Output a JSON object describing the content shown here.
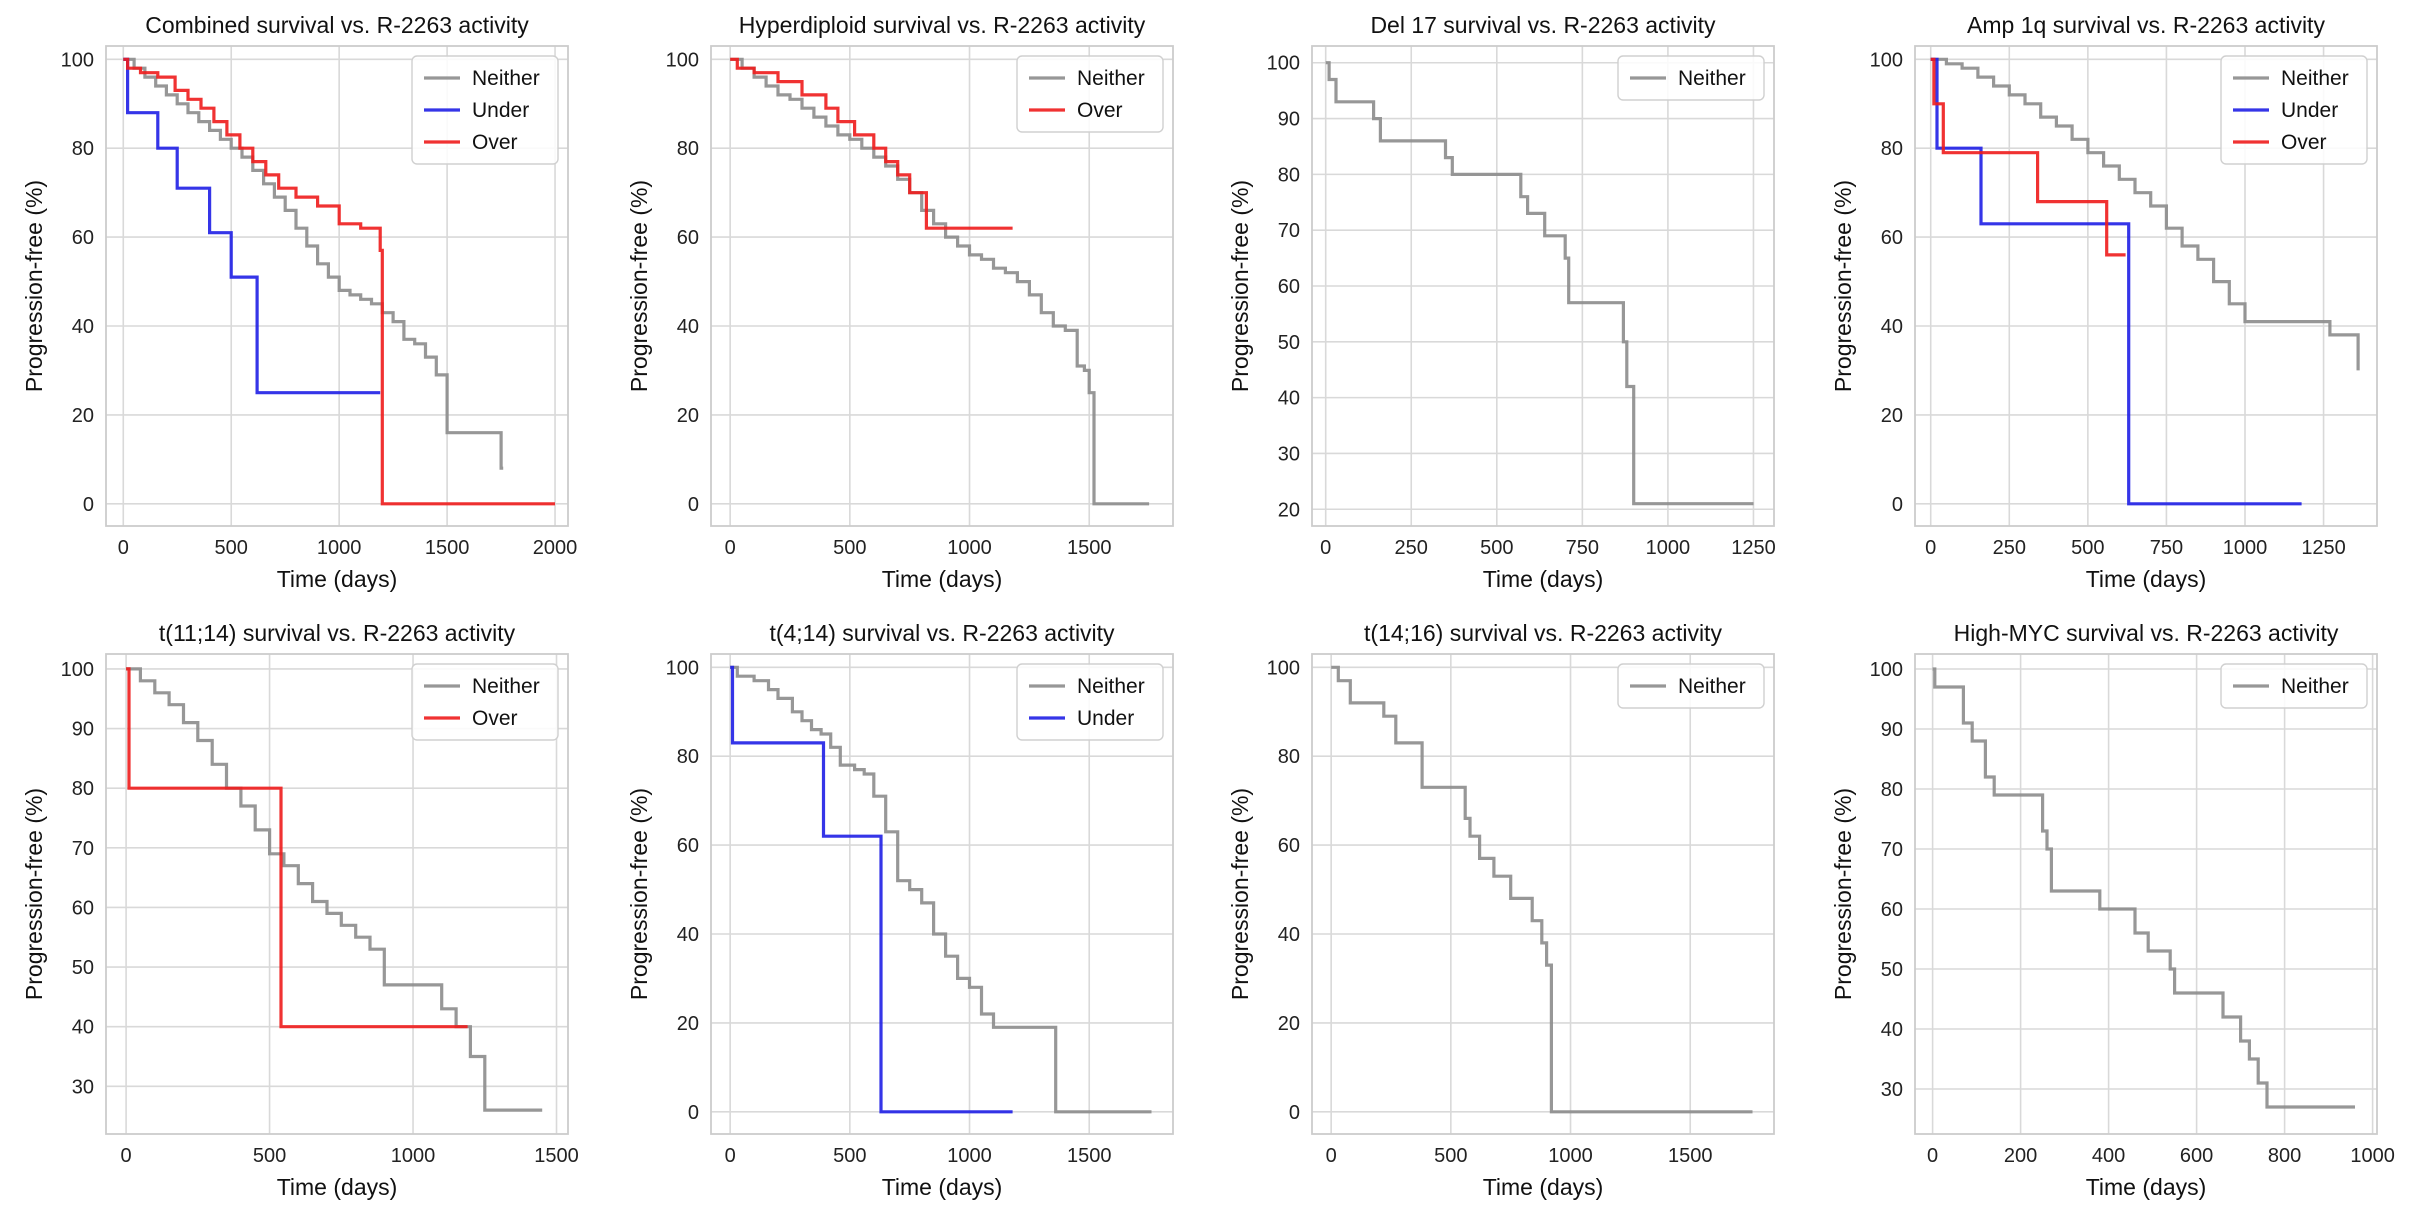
{
  "figure": {
    "colors": {
      "Neither": "#8c8c8c",
      "Under": "#1f1fe6",
      "Over": "#ee1c1c",
      "grid": "#d9d9d9",
      "frame": "#cccccc"
    }
  },
  "chart_data": [
    {
      "type": "line",
      "step": true,
      "title": "Combined survival vs. R-2263 activity",
      "xlabel": "Time (days)",
      "ylabel": "Progression-free (%)",
      "xlim": [
        -80,
        2060
      ],
      "ylim": [
        -5,
        103
      ],
      "xticks": [
        0,
        500,
        1000,
        1500,
        2000
      ],
      "yticks": [
        0,
        20,
        40,
        60,
        80,
        100
      ],
      "legend": [
        "Neither",
        "Under",
        "Over"
      ],
      "series": [
        {
          "name": "Neither",
          "x": [
            0,
            50,
            100,
            150,
            200,
            250,
            300,
            350,
            400,
            450,
            500,
            550,
            600,
            650,
            700,
            750,
            800,
            850,
            900,
            950,
            1000,
            1050,
            1100,
            1150,
            1200,
            1250,
            1300,
            1350,
            1400,
            1450,
            1500,
            1600,
            1700,
            1750,
            1760
          ],
          "y": [
            100,
            98,
            96,
            94,
            92,
            90,
            88,
            86,
            84,
            82,
            80,
            78,
            75,
            72,
            69,
            66,
            62,
            58,
            54,
            51,
            48,
            47,
            46,
            45,
            43,
            41,
            37,
            36,
            33,
            29,
            16,
            16,
            16,
            8,
            8
          ]
        },
        {
          "name": "Under",
          "x": [
            0,
            20,
            160,
            250,
            400,
            500,
            620,
            1190
          ],
          "y": [
            100,
            88,
            80,
            71,
            61,
            51,
            25,
            25
          ]
        },
        {
          "name": "Over",
          "x": [
            0,
            20,
            80,
            160,
            240,
            300,
            360,
            420,
            480,
            540,
            600,
            660,
            720,
            800,
            900,
            1000,
            1100,
            1190,
            1200,
            2000
          ],
          "y": [
            100,
            98,
            97,
            96,
            93,
            91,
            89,
            86,
            83,
            80,
            77,
            74,
            71,
            69,
            67,
            63,
            62,
            57,
            0,
            0
          ]
        }
      ]
    },
    {
      "type": "line",
      "step": true,
      "title": "Hyperdiploid survival vs. R-2263 activity",
      "xlabel": "Time (days)",
      "ylabel": "Progression-free (%)",
      "xlim": [
        -80,
        1850
      ],
      "ylim": [
        -5,
        103
      ],
      "xticks": [
        0,
        500,
        1000,
        1500
      ],
      "yticks": [
        0,
        20,
        40,
        60,
        80,
        100
      ],
      "legend": [
        "Neither",
        "Over"
      ],
      "series": [
        {
          "name": "Neither",
          "x": [
            0,
            50,
            100,
            150,
            200,
            250,
            300,
            350,
            400,
            450,
            500,
            550,
            600,
            650,
            700,
            750,
            800,
            850,
            900,
            950,
            1000,
            1050,
            1100,
            1150,
            1200,
            1250,
            1300,
            1350,
            1400,
            1450,
            1480,
            1500,
            1520,
            1750
          ],
          "y": [
            100,
            98,
            96,
            94,
            92,
            91,
            89,
            87,
            85,
            83,
            82,
            80,
            78,
            76,
            73,
            70,
            66,
            63,
            60,
            58,
            56,
            55,
            53,
            52,
            50,
            47,
            43,
            40,
            39,
            31,
            30,
            25,
            0,
            0
          ]
        },
        {
          "name": "Over",
          "x": [
            0,
            30,
            100,
            200,
            300,
            400,
            450,
            520,
            600,
            650,
            700,
            750,
            820,
            1180
          ],
          "y": [
            100,
            98,
            97,
            95,
            92,
            89,
            86,
            83,
            80,
            77,
            74,
            70,
            62,
            62
          ]
        }
      ]
    },
    {
      "type": "line",
      "step": true,
      "title": "Del 17 survival vs. R-2263 activity",
      "xlabel": "Time (days)",
      "ylabel": "Progression-free (%)",
      "xlim": [
        -40,
        1310
      ],
      "ylim": [
        17,
        103
      ],
      "xticks": [
        0,
        250,
        500,
        750,
        1000,
        1250
      ],
      "yticks": [
        20,
        30,
        40,
        50,
        60,
        70,
        80,
        90,
        100
      ],
      "legend": [
        "Neither"
      ],
      "series": [
        {
          "name": "Neither",
          "x": [
            0,
            10,
            30,
            140,
            160,
            350,
            370,
            570,
            590,
            640,
            700,
            710,
            870,
            880,
            890,
            900,
            1250
          ],
          "y": [
            100,
            97,
            93,
            90,
            86,
            83,
            80,
            76,
            73,
            69,
            65,
            57,
            50,
            42,
            42,
            21,
            21
          ]
        }
      ]
    },
    {
      "type": "line",
      "step": true,
      "title": "Amp 1q survival vs. R-2263 activity",
      "xlabel": "Time (days)",
      "ylabel": "Progression-free (%)",
      "xlim": [
        -50,
        1420
      ],
      "ylim": [
        -5,
        103
      ],
      "xticks": [
        0,
        250,
        500,
        750,
        1000,
        1250
      ],
      "yticks": [
        0,
        20,
        40,
        60,
        80,
        100
      ],
      "legend": [
        "Neither",
        "Under",
        "Over"
      ],
      "series": [
        {
          "name": "Neither",
          "x": [
            0,
            50,
            100,
            150,
            200,
            250,
            300,
            350,
            400,
            450,
            500,
            550,
            600,
            650,
            700,
            750,
            800,
            850,
            900,
            950,
            1000,
            1050,
            1250,
            1270,
            1360
          ],
          "y": [
            100,
            99,
            98,
            96,
            94,
            92,
            90,
            87,
            85,
            82,
            79,
            76,
            73,
            70,
            67,
            62,
            58,
            55,
            50,
            45,
            41,
            41,
            41,
            38,
            30
          ]
        },
        {
          "name": "Under",
          "x": [
            0,
            20,
            160,
            630,
            1180
          ],
          "y": [
            100,
            80,
            63,
            0,
            0
          ]
        },
        {
          "name": "Over",
          "x": [
            0,
            10,
            40,
            150,
            340,
            560,
            620
          ],
          "y": [
            100,
            90,
            79,
            79,
            68,
            56,
            56
          ]
        }
      ]
    },
    {
      "type": "line",
      "step": true,
      "title": "t(11;14) survival vs. R-2263 activity",
      "xlabel": "Time (days)",
      "ylabel": "Progression-free (%)",
      "xlim": [
        -70,
        1540
      ],
      "ylim": [
        22,
        102.5
      ],
      "xticks": [
        0,
        500,
        1000,
        1500
      ],
      "yticks": [
        30,
        40,
        50,
        60,
        70,
        80,
        90,
        100
      ],
      "legend": [
        "Neither",
        "Over"
      ],
      "series": [
        {
          "name": "Neither",
          "x": [
            0,
            50,
            100,
            150,
            200,
            250,
            300,
            350,
            400,
            450,
            500,
            550,
            600,
            650,
            700,
            750,
            800,
            850,
            900,
            950,
            1000,
            1050,
            1100,
            1150,
            1200,
            1250,
            1450
          ],
          "y": [
            100,
            98,
            96,
            94,
            91,
            88,
            84,
            80,
            77,
            73,
            69,
            67,
            64,
            61,
            59,
            57,
            55,
            53,
            47,
            47,
            47,
            47,
            43,
            40,
            35,
            26,
            26
          ]
        },
        {
          "name": "Over",
          "x": [
            0,
            10,
            530,
            540,
            1190
          ],
          "y": [
            100,
            80,
            80,
            40,
            40
          ]
        }
      ]
    },
    {
      "type": "line",
      "step": true,
      "title": "t(4;14) survival vs. R-2263 activity",
      "xlabel": "Time (days)",
      "ylabel": "Progression-free (%)",
      "xlim": [
        -80,
        1850
      ],
      "ylim": [
        -5,
        103
      ],
      "xticks": [
        0,
        500,
        1000,
        1500
      ],
      "yticks": [
        0,
        20,
        40,
        60,
        80,
        100
      ],
      "legend": [
        "Neither",
        "Under"
      ],
      "series": [
        {
          "name": "Neither",
          "x": [
            0,
            30,
            100,
            160,
            200,
            260,
            300,
            340,
            380,
            420,
            460,
            520,
            560,
            600,
            650,
            700,
            750,
            800,
            850,
            900,
            950,
            1000,
            1050,
            1100,
            1350,
            1360,
            1760
          ],
          "y": [
            100,
            98,
            97,
            95,
            93,
            90,
            88,
            86,
            85,
            82,
            78,
            77,
            76,
            71,
            63,
            52,
            50,
            47,
            40,
            35,
            30,
            28,
            22,
            19,
            19,
            0,
            0
          ]
        },
        {
          "name": "Under",
          "x": [
            0,
            10,
            380,
            390,
            620,
            630,
            1180
          ],
          "y": [
            100,
            83,
            83,
            62,
            62,
            0,
            0
          ]
        }
      ]
    },
    {
      "type": "line",
      "step": true,
      "title": "t(14;16) survival vs. R-2263 activity",
      "xlabel": "Time (days)",
      "ylabel": "Progression-free (%)",
      "xlim": [
        -80,
        1850
      ],
      "ylim": [
        -5,
        103
      ],
      "xticks": [
        0,
        500,
        1000,
        1500
      ],
      "yticks": [
        0,
        20,
        40,
        60,
        80,
        100
      ],
      "legend": [
        "Neither"
      ],
      "series": [
        {
          "name": "Neither",
          "x": [
            0,
            30,
            80,
            220,
            270,
            380,
            540,
            560,
            580,
            620,
            680,
            750,
            840,
            880,
            900,
            920,
            1760
          ],
          "y": [
            100,
            97,
            92,
            89,
            83,
            73,
            73,
            66,
            62,
            57,
            53,
            48,
            43,
            38,
            33,
            0,
            0
          ]
        }
      ]
    },
    {
      "type": "line",
      "step": true,
      "title": "High-MYC survival vs. R-2263 activity",
      "xlabel": "Time (days)",
      "ylabel": "Progression-free (%)",
      "xlim": [
        -40,
        1010
      ],
      "ylim": [
        22.5,
        102.5
      ],
      "xticks": [
        0,
        200,
        400,
        600,
        800,
        1000
      ],
      "yticks": [
        30,
        40,
        50,
        60,
        70,
        80,
        90,
        100
      ],
      "legend": [
        "Neither"
      ],
      "series": [
        {
          "name": "Neither",
          "x": [
            0,
            5,
            70,
            90,
            120,
            140,
            250,
            260,
            270,
            380,
            460,
            490,
            540,
            550,
            660,
            700,
            720,
            740,
            760,
            960
          ],
          "y": [
            100,
            97,
            91,
            88,
            82,
            79,
            73,
            70,
            63,
            60,
            56,
            53,
            50,
            46,
            42,
            38,
            35,
            31,
            27,
            27
          ]
        }
      ]
    }
  ]
}
